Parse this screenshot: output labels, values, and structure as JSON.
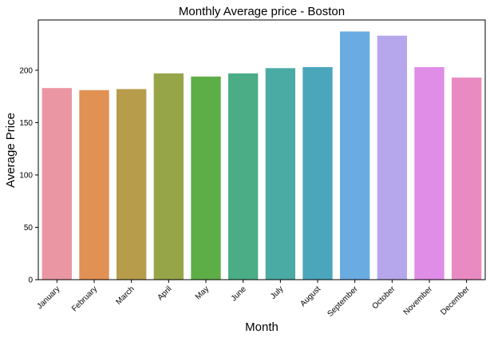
{
  "chart_data": {
    "type": "bar",
    "title": "Monthly Average price - Boston",
    "xlabel": "Month",
    "ylabel": "Average Price",
    "categories": [
      "January",
      "February",
      "March",
      "April",
      "May",
      "June",
      "July",
      "August",
      "September",
      "October",
      "November",
      "December"
    ],
    "values": [
      183,
      181,
      182,
      197,
      194,
      197,
      202,
      203,
      237,
      233,
      203,
      193
    ],
    "colors": [
      "#ea96a3",
      "#e19153",
      "#b69c4b",
      "#96a548",
      "#5eae48",
      "#4aad86",
      "#4aaba4",
      "#4ba6bc",
      "#6aabe2",
      "#b6a7ec",
      "#e08de7",
      "#e98ac2"
    ],
    "ylim": [
      0,
      248
    ],
    "yticks": [
      0,
      50,
      100,
      150,
      200
    ],
    "grid": false,
    "legend": "none"
  }
}
